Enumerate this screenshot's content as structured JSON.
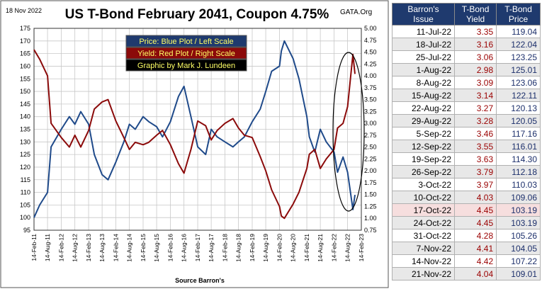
{
  "header": {
    "date": "18 Nov 2022",
    "title": "US T-Bond February 2041, Coupon 4.75%",
    "brand": "GATA.Org"
  },
  "legend": {
    "price": "Price:  Blue Plot / Left Scale",
    "yield": "Yield:  Red Plot / Right Scale",
    "credit": "Graphic by Mark J. Lundeen"
  },
  "source": "Source Barron's",
  "colors": {
    "price": "#1f4a8a",
    "yield": "#8b0a0a",
    "header": "#1f3a6e",
    "plot_bg": "#ffffff"
  },
  "chart_data": {
    "type": "line",
    "x_tick_labels": [
      "14-Feb-11",
      "14-Aug-11",
      "14-Feb-12",
      "14-Aug-12",
      "14-Feb-13",
      "14-Aug-13",
      "14-Feb-14",
      "14-Aug-14",
      "14-Feb-15",
      "14-Aug-15",
      "14-Feb-16",
      "14-Aug-16",
      "14-Feb-17",
      "14-Aug-17",
      "14-Feb-18",
      "14-Aug-18",
      "14-Feb-19",
      "14-Aug-19",
      "14-Feb-20",
      "14-Aug-20",
      "14-Feb-21",
      "14-Aug-21",
      "14-Feb-22",
      "14-Aug-22",
      "14-Feb-23"
    ],
    "left_axis": {
      "ylim": [
        95,
        175
      ],
      "ticks": [
        95,
        100,
        105,
        110,
        115,
        120,
        125,
        130,
        135,
        140,
        145,
        150,
        155,
        160,
        165,
        170,
        175
      ]
    },
    "right_axis": {
      "ylim": [
        0.75,
        5.0
      ],
      "ticks": [
        "0.75",
        "1.00",
        "1.25",
        "1.50",
        "1.75",
        "2.00",
        "2.25",
        "2.50",
        "2.75",
        "3.00",
        "3.25",
        "3.50",
        "3.75",
        "4.00",
        "4.25",
        "4.50",
        "4.75",
        "5.00"
      ]
    },
    "grid": true,
    "series": [
      {
        "axis": "left",
        "x": [
          "2011-02-14",
          "2011-05-01",
          "2011-08-14",
          "2011-10-01",
          "2012-02-14",
          "2012-06-01",
          "2012-08-14",
          "2012-11-01",
          "2013-02-14",
          "2013-05-01",
          "2013-08-14",
          "2013-11-01",
          "2014-02-14",
          "2014-06-01",
          "2014-08-14",
          "2014-11-01",
          "2015-02-14",
          "2015-05-01",
          "2015-08-14",
          "2015-11-01",
          "2016-02-14",
          "2016-06-01",
          "2016-08-14",
          "2016-11-15",
          "2017-02-14",
          "2017-06-01",
          "2017-08-14",
          "2017-11-01",
          "2018-02-14",
          "2018-06-01",
          "2018-08-14",
          "2018-11-01",
          "2019-02-14",
          "2019-06-01",
          "2019-08-14",
          "2019-11-01",
          "2020-02-14",
          "2020-03-10",
          "2020-04-20",
          "2020-08-14",
          "2020-11-01",
          "2021-02-14",
          "2021-03-20",
          "2021-06-01",
          "2021-08-14",
          "2021-11-01",
          "2022-02-14",
          "2022-04-01",
          "2022-06-14",
          "2022-08-14",
          "2022-10-24",
          "2022-11-21"
        ],
        "y": [
          100,
          105,
          110,
          128,
          135,
          140,
          137,
          142,
          137,
          125,
          117,
          115,
          122,
          130,
          137,
          135,
          140,
          138,
          136,
          132,
          138,
          148,
          152,
          140,
          128,
          125,
          135,
          132,
          130,
          128,
          130,
          132,
          138,
          143,
          150,
          158,
          160,
          166,
          170,
          163,
          155,
          140,
          132,
          126,
          135,
          130,
          126,
          118,
          124,
          118,
          103.19,
          109.01
        ]
      },
      {
        "axis": "right",
        "x": [
          "2011-02-14",
          "2011-05-01",
          "2011-08-14",
          "2011-10-01",
          "2012-02-14",
          "2012-06-01",
          "2012-08-14",
          "2012-11-01",
          "2013-02-14",
          "2013-05-01",
          "2013-08-14",
          "2013-11-01",
          "2014-02-14",
          "2014-06-01",
          "2014-08-14",
          "2014-11-01",
          "2015-02-14",
          "2015-05-01",
          "2015-08-14",
          "2015-11-01",
          "2016-02-14",
          "2016-06-01",
          "2016-08-14",
          "2016-11-15",
          "2017-02-14",
          "2017-06-01",
          "2017-08-14",
          "2017-11-01",
          "2018-02-14",
          "2018-06-01",
          "2018-08-14",
          "2018-11-01",
          "2019-02-14",
          "2019-06-01",
          "2019-08-14",
          "2019-11-01",
          "2020-02-14",
          "2020-03-10",
          "2020-04-20",
          "2020-08-14",
          "2020-11-01",
          "2021-02-14",
          "2021-03-20",
          "2021-06-01",
          "2021-08-14",
          "2021-11-01",
          "2022-02-14",
          "2022-04-01",
          "2022-06-14",
          "2022-08-14",
          "2022-10-24",
          "2022-11-21"
        ],
        "y": [
          4.55,
          4.35,
          4.0,
          3.0,
          2.7,
          2.5,
          2.75,
          2.5,
          2.85,
          3.3,
          3.45,
          3.5,
          3.05,
          2.7,
          2.45,
          2.6,
          2.55,
          2.6,
          2.75,
          2.85,
          2.55,
          2.15,
          1.95,
          2.45,
          3.05,
          2.95,
          2.65,
          2.85,
          3.0,
          3.1,
          2.9,
          2.75,
          2.7,
          2.3,
          2.0,
          1.6,
          1.25,
          1.05,
          1.0,
          1.3,
          1.55,
          2.05,
          2.35,
          2.45,
          2.05,
          2.25,
          2.45,
          2.9,
          3.0,
          3.35,
          4.45,
          4.04
        ]
      }
    ]
  },
  "table": {
    "headers": [
      [
        "Barron's",
        "Issue"
      ],
      [
        "T-Bond",
        "Yield"
      ],
      [
        "T-Bond",
        "Price"
      ]
    ],
    "rows": [
      [
        "11-Jul-22",
        "3.35",
        "119.04"
      ],
      [
        "18-Jul-22",
        "3.16",
        "122.04"
      ],
      [
        "25-Jul-22",
        "3.06",
        "123.25"
      ],
      [
        "1-Aug-22",
        "2.98",
        "125.01"
      ],
      [
        "8-Aug-22",
        "3.09",
        "123.06"
      ],
      [
        "15-Aug-22",
        "3.14",
        "122.11"
      ],
      [
        "22-Aug-22",
        "3.27",
        "120.13"
      ],
      [
        "29-Aug-22",
        "3.28",
        "120.05"
      ],
      [
        "5-Sep-22",
        "3.46",
        "117.16"
      ],
      [
        "12-Sep-22",
        "3.55",
        "116.01"
      ],
      [
        "19-Sep-22",
        "3.63",
        "114.30"
      ],
      [
        "26-Sep-22",
        "3.79",
        "112.18"
      ],
      [
        "3-Oct-22",
        "3.97",
        "110.03"
      ],
      [
        "10-Oct-22",
        "4.03",
        "109.06"
      ],
      [
        "17-Oct-22",
        "4.45",
        "103.19"
      ],
      [
        "24-Oct-22",
        "4.45",
        "103.19"
      ],
      [
        "31-Oct-22",
        "4.28",
        "105.26"
      ],
      [
        "7-Nov-22",
        "4.41",
        "104.05"
      ],
      [
        "14-Nov-22",
        "4.42",
        "107.22"
      ],
      [
        "21-Nov-22",
        "4.04",
        "109.01"
      ]
    ],
    "highlight_row": "17-Oct-22"
  }
}
